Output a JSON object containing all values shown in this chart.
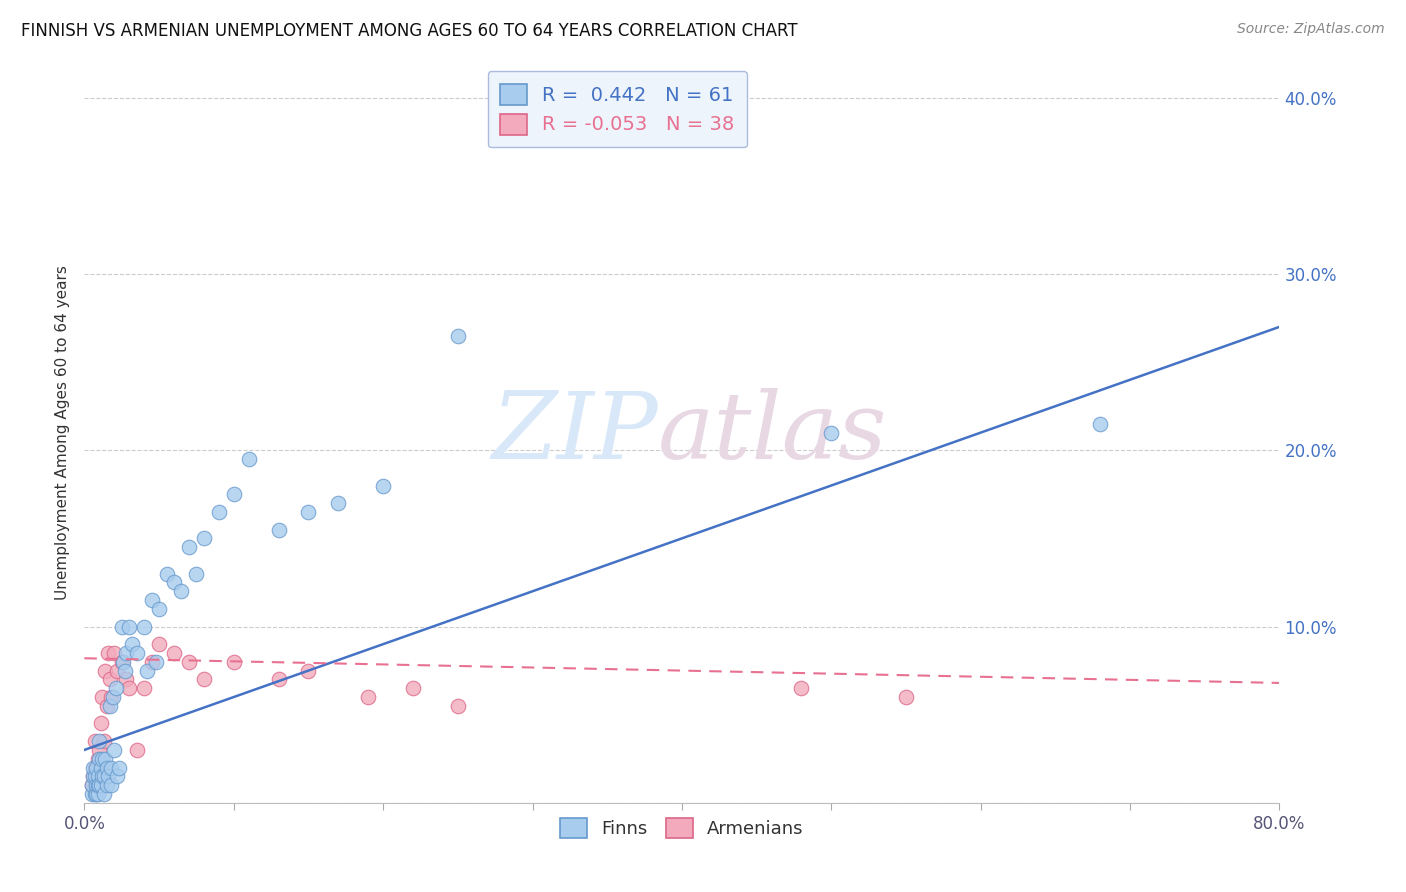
{
  "title": "FINNISH VS ARMENIAN UNEMPLOYMENT AMONG AGES 60 TO 64 YEARS CORRELATION CHART",
  "source": "Source: ZipAtlas.com",
  "ylabel": "Unemployment Among Ages 60 to 64 years",
  "xlim": [
    0.0,
    0.8
  ],
  "ylim": [
    0.0,
    0.42
  ],
  "yticks": [
    0.0,
    0.1,
    0.2,
    0.3,
    0.4
  ],
  "ytick_labels": [
    "",
    "10.0%",
    "20.0%",
    "30.0%",
    "40.0%"
  ],
  "xticks": [
    0.0,
    0.1,
    0.2,
    0.3,
    0.4,
    0.5,
    0.6,
    0.7,
    0.8
  ],
  "finn_R": 0.442,
  "finn_N": 61,
  "armenian_R": -0.053,
  "armenian_N": 38,
  "finn_color": "#A8CCEE",
  "armenian_color": "#F2AABC",
  "finn_line_color": "#4472C4",
  "armenian_line_color": "#E87090",
  "finn_edge_color": "#6699CC",
  "armenian_edge_color": "#DD6688",
  "finn_scatter_x": [
    0.005,
    0.005,
    0.006,
    0.006,
    0.007,
    0.007,
    0.008,
    0.008,
    0.008,
    0.009,
    0.009,
    0.009,
    0.01,
    0.01,
    0.01,
    0.011,
    0.011,
    0.012,
    0.012,
    0.013,
    0.013,
    0.014,
    0.015,
    0.015,
    0.016,
    0.017,
    0.018,
    0.018,
    0.019,
    0.02,
    0.021,
    0.022,
    0.023,
    0.025,
    0.026,
    0.027,
    0.028,
    0.03,
    0.032,
    0.035,
    0.04,
    0.042,
    0.045,
    0.048,
    0.05,
    0.055,
    0.06,
    0.065,
    0.07,
    0.075,
    0.08,
    0.09,
    0.1,
    0.11,
    0.13,
    0.15,
    0.17,
    0.2,
    0.25,
    0.5,
    0.68
  ],
  "finn_scatter_y": [
    0.005,
    0.01,
    0.015,
    0.02,
    0.005,
    0.015,
    0.005,
    0.01,
    0.02,
    0.005,
    0.01,
    0.015,
    0.01,
    0.025,
    0.035,
    0.01,
    0.02,
    0.015,
    0.025,
    0.005,
    0.015,
    0.025,
    0.01,
    0.02,
    0.015,
    0.055,
    0.01,
    0.02,
    0.06,
    0.03,
    0.065,
    0.015,
    0.02,
    0.1,
    0.08,
    0.075,
    0.085,
    0.1,
    0.09,
    0.085,
    0.1,
    0.075,
    0.115,
    0.08,
    0.11,
    0.13,
    0.125,
    0.12,
    0.145,
    0.13,
    0.15,
    0.165,
    0.175,
    0.195,
    0.155,
    0.165,
    0.17,
    0.18,
    0.265,
    0.21,
    0.215
  ],
  "armenian_scatter_x": [
    0.005,
    0.006,
    0.007,
    0.007,
    0.008,
    0.008,
    0.009,
    0.009,
    0.01,
    0.01,
    0.011,
    0.012,
    0.013,
    0.014,
    0.015,
    0.016,
    0.017,
    0.018,
    0.02,
    0.022,
    0.025,
    0.028,
    0.03,
    0.035,
    0.04,
    0.045,
    0.05,
    0.06,
    0.07,
    0.08,
    0.1,
    0.13,
    0.15,
    0.19,
    0.22,
    0.25,
    0.48,
    0.55
  ],
  "armenian_scatter_y": [
    0.01,
    0.015,
    0.02,
    0.035,
    0.01,
    0.02,
    0.01,
    0.025,
    0.015,
    0.03,
    0.045,
    0.06,
    0.035,
    0.075,
    0.055,
    0.085,
    0.07,
    0.06,
    0.085,
    0.075,
    0.08,
    0.07,
    0.065,
    0.03,
    0.065,
    0.08,
    0.09,
    0.085,
    0.08,
    0.07,
    0.08,
    0.07,
    0.075,
    0.06,
    0.065,
    0.055,
    0.065,
    0.06
  ],
  "finn_trend_x0": 0.0,
  "finn_trend_y0": 0.03,
  "finn_trend_x1": 0.8,
  "finn_trend_y1": 0.27,
  "armenian_trend_x0": 0.0,
  "armenian_trend_y0": 0.082,
  "armenian_trend_x1": 0.8,
  "armenian_trend_y1": 0.068,
  "legend_box_color": "#EEF4FC",
  "legend_border_color": "#AABBDD",
  "watermark_zip_color": "#D8E8F8",
  "watermark_atlas_color": "#E8D8E4"
}
